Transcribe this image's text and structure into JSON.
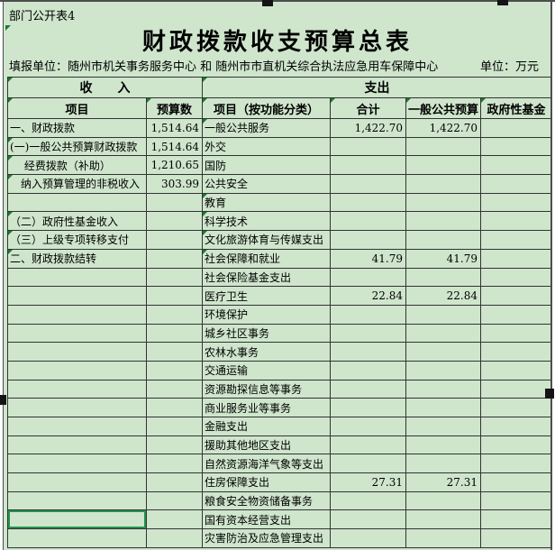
{
  "meta": {
    "sheet_label": "部门公开表4",
    "title": "财政拨款收支预算总表",
    "filler_unit_label": "填报单位：随州市机关事务服务中心 和 随州市市直机关综合执法应急用车保障中心",
    "unit_note": "单位：万元"
  },
  "table": {
    "group_headers": {
      "income": "收　　入",
      "expenditure": "支出"
    },
    "columns": [
      "项目",
      "预算数",
      "项目（按功能分类）",
      "合计",
      "一般公共预算",
      "政府性基金"
    ],
    "rows": [
      {
        "income": "一、财政拨款",
        "income_value": "1,514.64",
        "expense": "一般公共服务",
        "total": "1,422.70",
        "general": "1,422.70",
        "fund": ""
      },
      {
        "income": "(一)一般公共预算财政拨款",
        "income_value": "1,514.64",
        "expense": "外交",
        "total": "",
        "general": "",
        "fund": ""
      },
      {
        "income": "　 经费拨款（补助）",
        "income_value": "1,210.65",
        "expense": "国防",
        "total": "",
        "general": "",
        "fund": ""
      },
      {
        "income": "　纳入预算管理的非税收入",
        "income_value": "303.99",
        "expense": "公共安全",
        "total": "",
        "general": "",
        "fund": ""
      },
      {
        "income": "",
        "income_value": "",
        "expense": "教育",
        "total": "",
        "general": "",
        "fund": ""
      },
      {
        "income": "（二）政府性基金收入",
        "income_value": "",
        "expense": "科学技术",
        "total": "",
        "general": "",
        "fund": ""
      },
      {
        "income": "（三）上级专项转移支付",
        "income_value": "",
        "expense": "文化旅游体育与传媒支出",
        "total": "",
        "general": "",
        "fund": ""
      },
      {
        "income": "二、财政拨款结转",
        "income_value": "",
        "expense": "社会保障和就业",
        "total": "41.79",
        "general": "41.79",
        "fund": ""
      },
      {
        "income": "",
        "income_value": "",
        "expense": "社会保险基金支出",
        "total": "",
        "general": "",
        "fund": ""
      },
      {
        "income": "",
        "income_value": "",
        "expense": "医疗卫生",
        "total": "22.84",
        "general": "22.84",
        "fund": ""
      },
      {
        "income": "",
        "income_value": "",
        "expense": "环境保护",
        "total": "",
        "general": "",
        "fund": ""
      },
      {
        "income": "",
        "income_value": "",
        "expense": "城乡社区事务",
        "total": "",
        "general": "",
        "fund": ""
      },
      {
        "income": "",
        "income_value": "",
        "expense": "农林水事务",
        "total": "",
        "general": "",
        "fund": ""
      },
      {
        "income": "",
        "income_value": "",
        "expense": "交通运输",
        "total": "",
        "general": "",
        "fund": ""
      },
      {
        "income": "",
        "income_value": "",
        "expense": "资源勘探信息等事务",
        "total": "",
        "general": "",
        "fund": ""
      },
      {
        "income": "",
        "income_value": "",
        "expense": "商业服务业等事务",
        "total": "",
        "general": "",
        "fund": ""
      },
      {
        "income": "",
        "income_value": "",
        "expense": "金融支出",
        "total": "",
        "general": "",
        "fund": ""
      },
      {
        "income": "",
        "income_value": "",
        "expense": "援助其他地区支出",
        "total": "",
        "general": "",
        "fund": ""
      },
      {
        "income": "",
        "income_value": "",
        "expense": "自然资源海洋气象等支出",
        "total": "",
        "general": "",
        "fund": ""
      },
      {
        "income": "",
        "income_value": "",
        "expense": "住房保障支出",
        "total": "27.31",
        "general": "27.31",
        "fund": ""
      },
      {
        "income": "",
        "income_value": "",
        "expense": "粮食安全物资储备事务",
        "total": "",
        "general": "",
        "fund": ""
      },
      {
        "income": "",
        "income_value": "",
        "expense": "国有资本经营支出",
        "total": "",
        "general": "",
        "fund": ""
      },
      {
        "income": "",
        "income_value": "",
        "expense": "灾害防治及应急管理支出",
        "total": "",
        "general": "",
        "fund": ""
      }
    ],
    "income_indicator_rows": [
      2,
      3,
      4,
      6,
      7,
      8
    ],
    "expense_indicator_rows": [
      1,
      5,
      6,
      7,
      8
    ],
    "selected_income_cell_row": 22
  },
  "colors": {
    "sheet_bg": "#cfe6cd",
    "grid": "#333333",
    "selection_green": "#28924f",
    "indicator_green": "#1d7a2e",
    "frame": "#4d4d4d",
    "handle": "#141414"
  }
}
